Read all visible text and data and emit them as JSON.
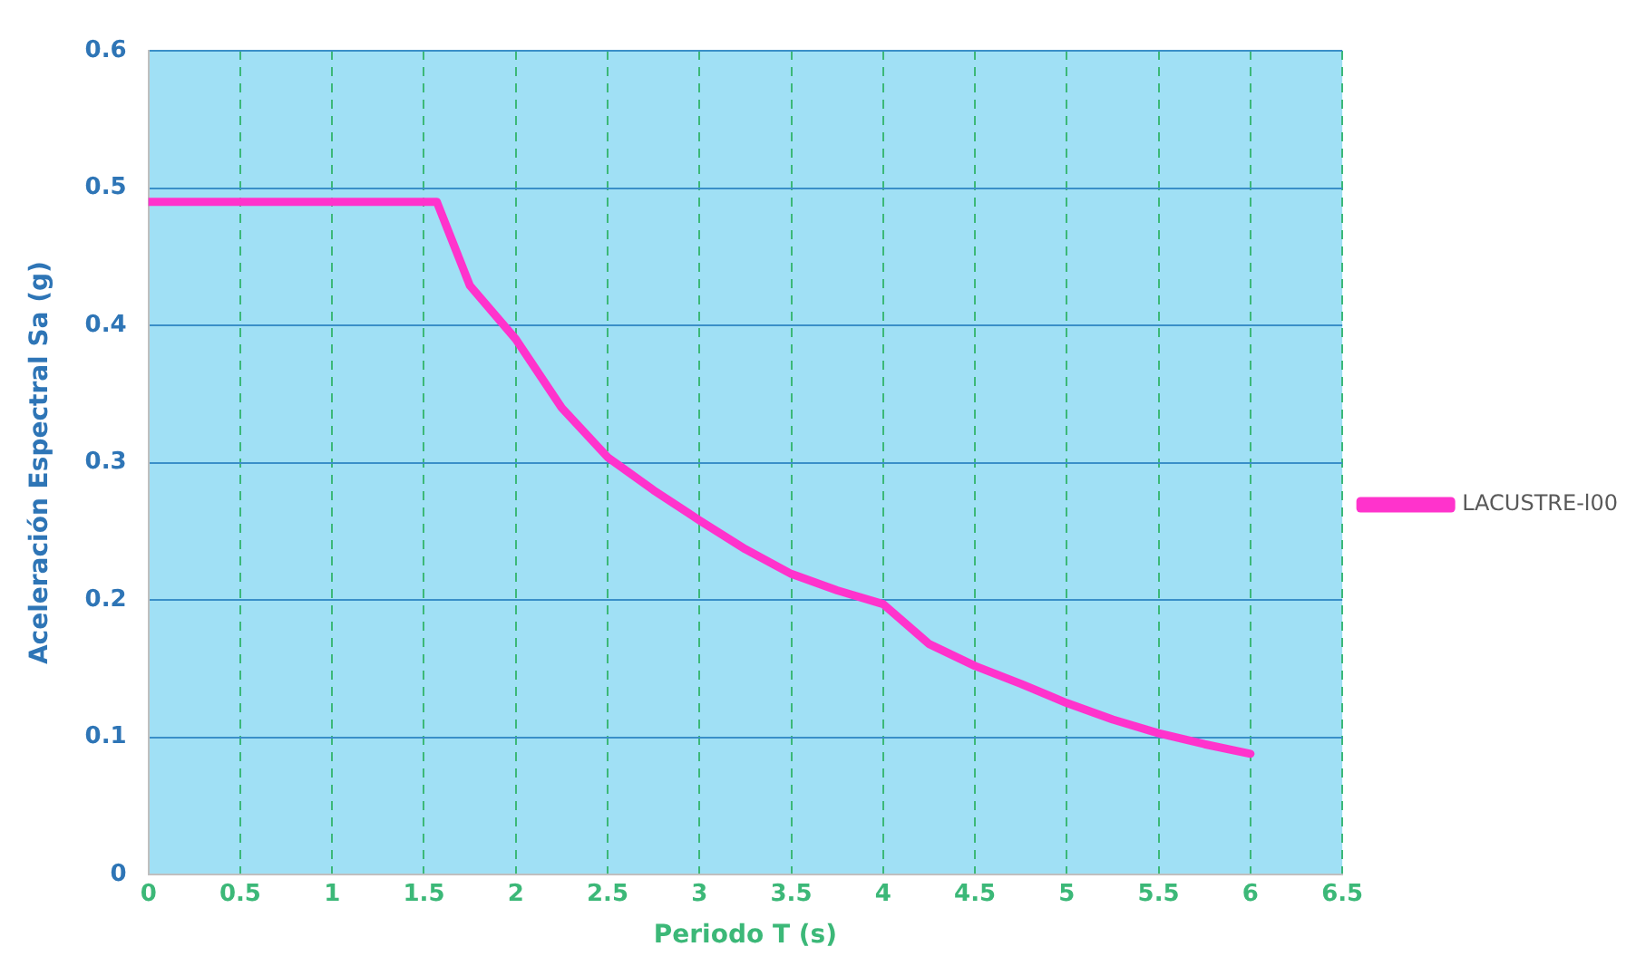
{
  "chart_data": {
    "type": "line",
    "xlabel": "Periodo T (s)",
    "ylabel": "Aceleración Espectral Sa (g)",
    "series": [
      {
        "name": "LACUSTRE-l00",
        "color": "#ff33cc",
        "x": [
          0,
          0.5,
          1,
          1.5,
          1.57,
          1.75,
          2,
          2.25,
          2.5,
          2.75,
          3,
          3.25,
          3.5,
          3.75,
          4,
          4.25,
          4.5,
          4.75,
          5,
          5.25,
          5.5,
          5.75,
          6
        ],
        "values": [
          0.49,
          0.49,
          0.49,
          0.49,
          0.49,
          0.429,
          0.39,
          0.34,
          0.304,
          0.28,
          0.258,
          0.237,
          0.219,
          0.207,
          0.197,
          0.168,
          0.152,
          0.139,
          0.125,
          0.113,
          0.103,
          0.095,
          0.088
        ]
      }
    ],
    "xlim": [
      0,
      6.5
    ],
    "xticks": [
      0,
      0.5,
      1,
      1.5,
      2,
      2.5,
      3,
      3.5,
      4,
      4.5,
      5,
      5.5,
      6,
      6.5
    ],
    "ylim": [
      0,
      0.6
    ],
    "yticks": [
      0,
      0.1,
      0.2,
      0.3,
      0.4,
      0.5,
      0.6
    ],
    "grid": true,
    "legend": "right",
    "marker": "none",
    "line_style": "solid"
  }
}
